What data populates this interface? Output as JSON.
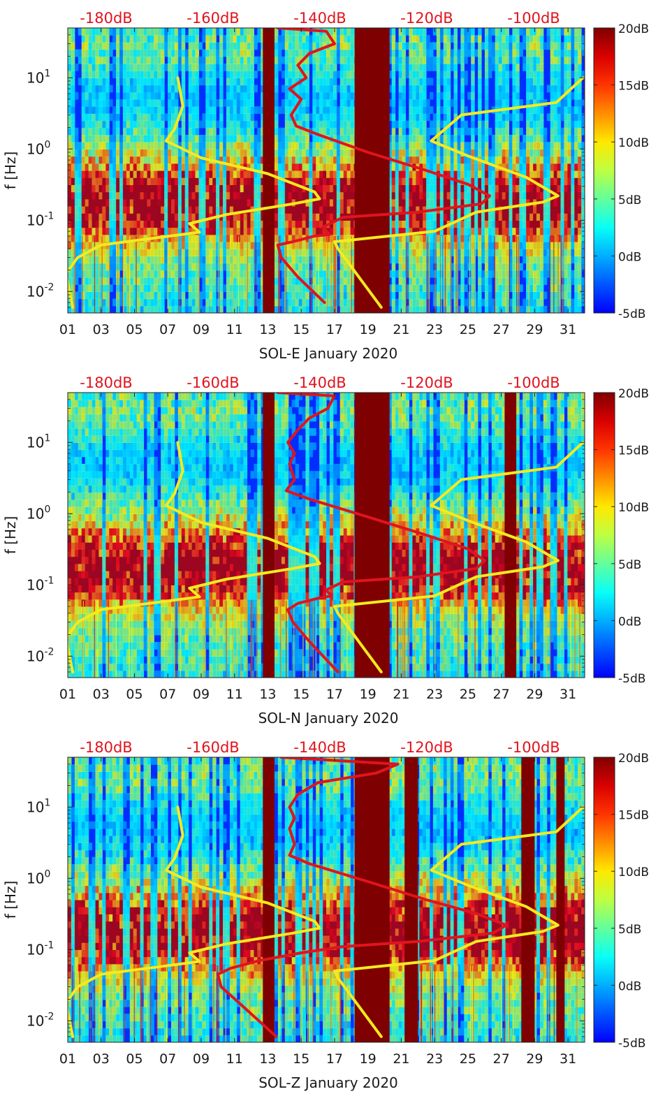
{
  "chart_data": [
    {
      "type": "heatmap",
      "title": "",
      "xlabel": "SOL-E January 2020",
      "ylabel": "f [Hz]",
      "x_ticks": [
        "01",
        "03",
        "05",
        "07",
        "09",
        "11",
        "13",
        "15",
        "17",
        "19",
        "21",
        "23",
        "25",
        "27",
        "29",
        "31"
      ],
      "xlim": [
        1,
        32
      ],
      "y_scale": "log",
      "ylim": [
        0.005,
        50
      ],
      "y_ticks": [
        "10^{-2}",
        "10^{-1}",
        "10^{0}",
        "10^{1}"
      ],
      "top_axis_labels": [
        "-180dB",
        "-160dB",
        "-140dB",
        "-120dB",
        "-100dB"
      ],
      "colorbar": {
        "range": [
          -5,
          20
        ],
        "tick_labels": [
          "20dB",
          "15dB",
          "10dB",
          "5dB",
          "0dB",
          "-5dB"
        ],
        "colormap": "jet"
      },
      "data_gaps": [
        [
          12.7,
          13.4
        ],
        [
          18.2,
          20.3
        ]
      ],
      "series": [
        {
          "color": "#f5ea1e",
          "points": [
            [
              7.6,
              10
            ],
            [
              7.9,
              4
            ],
            [
              7.4,
              1.9
            ],
            [
              6.9,
              1.3
            ],
            [
              9,
              0.75
            ],
            [
              13,
              0.45
            ],
            [
              15.8,
              0.25
            ],
            [
              16.1,
              0.2
            ],
            [
              14.5,
              0.17
            ],
            [
              10.5,
              0.12
            ],
            [
              8.3,
              0.09
            ],
            [
              8.9,
              0.068
            ],
            [
              3,
              0.045
            ],
            [
              1.6,
              0.03
            ],
            [
              0.9,
              0.018
            ],
            [
              1.1,
              0.01
            ],
            [
              1.3,
              0.006
            ]
          ]
        },
        {
          "color": "#f5ea1e",
          "points": [
            [
              31.9,
              10
            ],
            [
              30.3,
              4.5
            ],
            [
              24.6,
              3
            ],
            [
              22.8,
              1.3
            ],
            [
              25,
              0.8
            ],
            [
              28.5,
              0.4
            ],
            [
              30.4,
              0.22
            ],
            [
              29.5,
              0.18
            ],
            [
              25.5,
              0.13
            ],
            [
              23,
              0.07
            ],
            [
              17,
              0.05
            ],
            [
              17.2,
              0.04
            ],
            [
              19.8,
              0.006
            ]
          ]
        },
        {
          "color": "#e0141e",
          "points": [
            [
              13.6,
              50
            ],
            [
              16.5,
              45
            ],
            [
              17,
              30
            ],
            [
              15.5,
              22
            ],
            [
              14.8,
              15
            ],
            [
              15.3,
              10
            ],
            [
              14.3,
              7
            ],
            [
              15,
              5
            ],
            [
              14.4,
              3
            ],
            [
              14.7,
              2.1
            ],
            [
              16,
              1.6
            ],
            [
              19,
              0.9
            ],
            [
              22.5,
              0.5
            ],
            [
              25,
              0.32
            ],
            [
              26.3,
              0.22
            ],
            [
              25.8,
              0.17
            ],
            [
              22,
              0.13
            ],
            [
              17.5,
              0.11
            ],
            [
              16.3,
              0.08
            ],
            [
              16.7,
              0.063
            ],
            [
              15.8,
              0.06
            ],
            [
              14.5,
              0.05
            ],
            [
              13.6,
              0.045
            ],
            [
              13.8,
              0.03
            ],
            [
              14.8,
              0.016
            ],
            [
              16.4,
              0.007
            ]
          ]
        }
      ]
    },
    {
      "type": "heatmap",
      "title": "",
      "xlabel": "SOL-N January 2020",
      "ylabel": "f [Hz]",
      "x_ticks": [
        "01",
        "03",
        "05",
        "07",
        "09",
        "11",
        "13",
        "15",
        "17",
        "19",
        "21",
        "23",
        "25",
        "27",
        "29",
        "31"
      ],
      "xlim": [
        1,
        32
      ],
      "y_scale": "log",
      "ylim": [
        0.005,
        50
      ],
      "y_ticks": [
        "10^{-2}",
        "10^{-1}",
        "10^{0}",
        "10^{1}"
      ],
      "top_axis_labels": [
        "-180dB",
        "-160dB",
        "-140dB",
        "-120dB",
        "-100dB"
      ],
      "colorbar": {
        "range": [
          -5,
          20
        ],
        "tick_labels": [
          "20dB",
          "15dB",
          "10dB",
          "5dB",
          "0dB",
          "-5dB"
        ],
        "colormap": "jet"
      },
      "data_gaps": [
        [
          12.7,
          13.4
        ],
        [
          18.2,
          20.3
        ],
        [
          27.2,
          27.9
        ]
      ],
      "series": [
        {
          "color": "#f5ea1e",
          "points": [
            [
              7.6,
              10
            ],
            [
              7.9,
              4
            ],
            [
              7.4,
              1.9
            ],
            [
              6.9,
              1.3
            ],
            [
              9,
              0.75
            ],
            [
              13,
              0.45
            ],
            [
              15.8,
              0.25
            ],
            [
              16.1,
              0.2
            ],
            [
              14.5,
              0.17
            ],
            [
              10.5,
              0.12
            ],
            [
              8.3,
              0.09
            ],
            [
              8.9,
              0.068
            ],
            [
              3,
              0.045
            ],
            [
              1.6,
              0.03
            ],
            [
              0.9,
              0.018
            ],
            [
              1.1,
              0.01
            ],
            [
              1.3,
              0.006
            ]
          ]
        },
        {
          "color": "#f5ea1e",
          "points": [
            [
              31.9,
              10
            ],
            [
              30.3,
              4.5
            ],
            [
              24.6,
              3
            ],
            [
              22.8,
              1.3
            ],
            [
              25,
              0.8
            ],
            [
              28.5,
              0.4
            ],
            [
              30.4,
              0.22
            ],
            [
              29.5,
              0.18
            ],
            [
              25.5,
              0.13
            ],
            [
              23,
              0.07
            ],
            [
              17,
              0.05
            ],
            [
              17.2,
              0.04
            ],
            [
              19.8,
              0.006
            ]
          ]
        },
        {
          "color": "#e0141e",
          "points": [
            [
              13.6,
              50
            ],
            [
              17,
              45
            ],
            [
              16.6,
              30
            ],
            [
              15.5,
              22
            ],
            [
              14.8,
              15
            ],
            [
              14.2,
              10
            ],
            [
              14.6,
              7
            ],
            [
              14.3,
              5
            ],
            [
              14.6,
              3
            ],
            [
              14.1,
              2.1
            ],
            [
              15.5,
              1.6
            ],
            [
              19,
              0.9
            ],
            [
              22.5,
              0.5
            ],
            [
              25,
              0.32
            ],
            [
              26,
              0.22
            ],
            [
              25.5,
              0.17
            ],
            [
              22,
              0.13
            ],
            [
              17.5,
              0.11
            ],
            [
              16.5,
              0.085
            ],
            [
              16.8,
              0.07
            ],
            [
              16,
              0.065
            ],
            [
              14.8,
              0.055
            ],
            [
              14.2,
              0.045
            ],
            [
              14.5,
              0.03
            ],
            [
              15.5,
              0.016
            ],
            [
              17.2,
              0.006
            ]
          ]
        }
      ]
    },
    {
      "type": "heatmap",
      "title": "",
      "xlabel": "SOL-Z January 2020",
      "ylabel": "f [Hz]",
      "x_ticks": [
        "01",
        "03",
        "05",
        "07",
        "09",
        "11",
        "13",
        "15",
        "17",
        "19",
        "21",
        "23",
        "25",
        "27",
        "29",
        "31"
      ],
      "xlim": [
        1,
        32
      ],
      "y_scale": "log",
      "ylim": [
        0.005,
        50
      ],
      "y_ticks": [
        "10^{-2}",
        "10^{-1}",
        "10^{0}",
        "10^{1}"
      ],
      "top_axis_labels": [
        "-180dB",
        "-160dB",
        "-140dB",
        "-120dB",
        "-100dB"
      ],
      "colorbar": {
        "range": [
          -5,
          20
        ],
        "tick_labels": [
          "20dB",
          "15dB",
          "10dB",
          "5dB",
          "0dB",
          "-5dB"
        ],
        "colormap": "jet"
      },
      "data_gaps": [
        [
          12.7,
          13.4
        ],
        [
          18.2,
          20.3
        ],
        [
          21.2,
          22.0
        ],
        [
          28.2,
          29.0
        ],
        [
          30.3,
          30.8
        ]
      ],
      "series": [
        {
          "color": "#f5ea1e",
          "points": [
            [
              7.6,
              10
            ],
            [
              7.9,
              4
            ],
            [
              7.4,
              1.9
            ],
            [
              6.9,
              1.3
            ],
            [
              9,
              0.75
            ],
            [
              13,
              0.45
            ],
            [
              15.8,
              0.25
            ],
            [
              16.1,
              0.2
            ],
            [
              14.5,
              0.17
            ],
            [
              10.5,
              0.12
            ],
            [
              8.3,
              0.09
            ],
            [
              8.9,
              0.068
            ],
            [
              3,
              0.045
            ],
            [
              1.6,
              0.03
            ],
            [
              0.9,
              0.018
            ],
            [
              1.1,
              0.01
            ],
            [
              1.3,
              0.006
            ]
          ]
        },
        {
          "color": "#f5ea1e",
          "points": [
            [
              31.9,
              10
            ],
            [
              30.3,
              4.5
            ],
            [
              24.6,
              3
            ],
            [
              22.8,
              1.3
            ],
            [
              25,
              0.8
            ],
            [
              28.5,
              0.4
            ],
            [
              30.4,
              0.22
            ],
            [
              29.5,
              0.18
            ],
            [
              25.5,
              0.13
            ],
            [
              23,
              0.07
            ],
            [
              17,
              0.05
            ],
            [
              17.2,
              0.04
            ],
            [
              19.8,
              0.006
            ]
          ]
        },
        {
          "color": "#e0141e",
          "points": [
            [
              13.8,
              50
            ],
            [
              20.8,
              40
            ],
            [
              19.5,
              30
            ],
            [
              16,
              22
            ],
            [
              14.8,
              15
            ],
            [
              14.3,
              10
            ],
            [
              14.6,
              7
            ],
            [
              14.3,
              5
            ],
            [
              14.6,
              3
            ],
            [
              14.3,
              2.1
            ],
            [
              15.5,
              1.6
            ],
            [
              19,
              0.9
            ],
            [
              22.5,
              0.5
            ],
            [
              25.5,
              0.32
            ],
            [
              27.3,
              0.22
            ],
            [
              26.5,
              0.17
            ],
            [
              22,
              0.13
            ],
            [
              17.5,
              0.11
            ],
            [
              15,
              0.09
            ],
            [
              12.5,
              0.07
            ],
            [
              10.8,
              0.055
            ],
            [
              10,
              0.045
            ],
            [
              10.2,
              0.03
            ],
            [
              11.5,
              0.016
            ],
            [
              13.5,
              0.006
            ]
          ]
        }
      ]
    }
  ]
}
